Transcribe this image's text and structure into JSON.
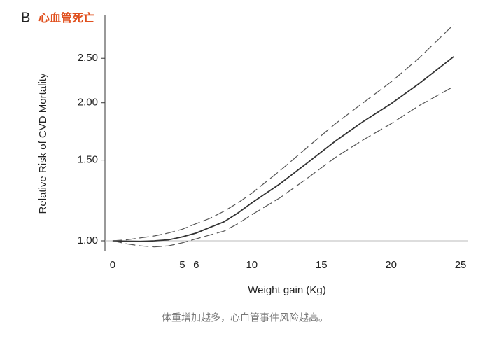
{
  "chart_data": {
    "type": "line",
    "panel_label": "B",
    "title": "心血管死亡",
    "ylabel": "Relative Risk of CVD Mortality",
    "xlabel": "Weight gain (Kg)",
    "caption": "体重增加越多，心血管事件风险越高。",
    "yscale": "log",
    "x": [
      0,
      1,
      2,
      3,
      4,
      5,
      6,
      7,
      8,
      9,
      10,
      12,
      14,
      16,
      18,
      20,
      22,
      24.5
    ],
    "series": [
      {
        "color": "#333333",
        "dash": "none",
        "values": [
          1.0,
          0.998,
          0.997,
          1.0,
          1.005,
          1.02,
          1.04,
          1.07,
          1.1,
          1.15,
          1.21,
          1.33,
          1.48,
          1.65,
          1.82,
          1.99,
          2.2,
          2.52
        ]
      },
      {
        "color": "#555555",
        "dash": "14 5",
        "values": [
          1.0,
          1.005,
          1.015,
          1.025,
          1.04,
          1.06,
          1.09,
          1.12,
          1.16,
          1.21,
          1.27,
          1.42,
          1.6,
          1.8,
          2.0,
          2.22,
          2.5,
          2.96
        ]
      },
      {
        "color": "#555555",
        "dash": "14 5",
        "values": [
          1.0,
          0.985,
          0.975,
          0.97,
          0.975,
          0.99,
          1.01,
          1.03,
          1.05,
          1.09,
          1.14,
          1.24,
          1.37,
          1.52,
          1.66,
          1.8,
          1.97,
          2.17
        ]
      }
    ],
    "xlim": [
      -0.55,
      25.5
    ],
    "ylim": [
      0.95,
      3.1
    ],
    "xticks": [
      0,
      5,
      6,
      10,
      15,
      20,
      25
    ],
    "yticks": [
      {
        "value": 1,
        "label": "1.00"
      },
      {
        "value": 1.5,
        "label": "1.50"
      },
      {
        "value": 2,
        "label": "2.00"
      },
      {
        "value": 2.5,
        "label": "2.50"
      }
    ],
    "hline": 1,
    "hline_color": "#bbbbbb",
    "title_color": "#e0501e"
  }
}
